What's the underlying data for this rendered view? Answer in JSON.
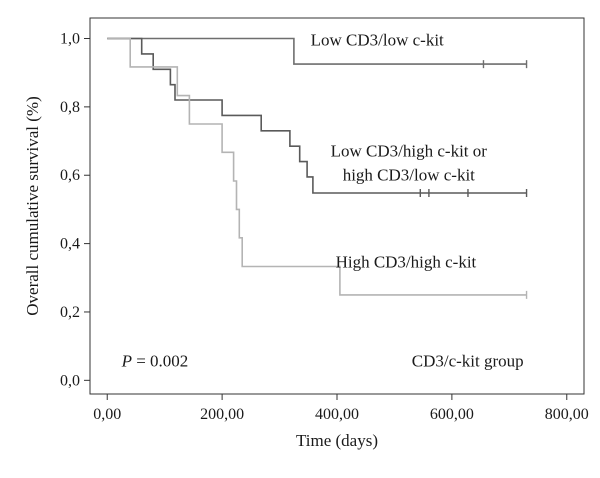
{
  "chart_data": {
    "type": "line",
    "step": true,
    "xlabel": "Time (days)",
    "ylabel": "Overall cumulative survival (%)",
    "xlim": [
      -30,
      830
    ],
    "ylim": [
      -0.04,
      1.06
    ],
    "x_ticks": [
      {
        "value": 0,
        "label": "0,00"
      },
      {
        "value": 200,
        "label": "200,00"
      },
      {
        "value": 400,
        "label": "400,00"
      },
      {
        "value": 600,
        "label": "600,00"
      },
      {
        "value": 800,
        "label": "800,00"
      }
    ],
    "y_ticks": [
      {
        "value": 0,
        "label": "0,0"
      },
      {
        "value": 0.2,
        "label": "0,2"
      },
      {
        "value": 0.4,
        "label": "0,4"
      },
      {
        "value": 0.6,
        "label": "0,6"
      },
      {
        "value": 0.8,
        "label": "0,8"
      },
      {
        "value": 1.0,
        "label": "1,0"
      }
    ],
    "grid": false,
    "series": [
      {
        "name": "Low CD3/low c-kit",
        "color": "#6e6e6e",
        "label_anchor": {
          "x": 470,
          "y": 0.98
        },
        "points": [
          [
            0,
            1.0
          ],
          [
            325,
            1.0
          ],
          [
            325,
            0.925
          ],
          [
            730,
            0.925
          ]
        ],
        "censored": [
          [
            655,
            0.925
          ],
          [
            730,
            0.925
          ]
        ]
      },
      {
        "name": "Low CD3/high c-kit or high CD3/low c-kit",
        "label_lines": [
          "Low CD3/high c-kit or",
          "high CD3/low c-kit"
        ],
        "color": "#5a5a5a",
        "label_anchor": {
          "x": 525,
          "y": 0.655
        },
        "points": [
          [
            0,
            1.0
          ],
          [
            60,
            1.0
          ],
          [
            60,
            0.955
          ],
          [
            80,
            0.955
          ],
          [
            80,
            0.91
          ],
          [
            110,
            0.91
          ],
          [
            110,
            0.865
          ],
          [
            118,
            0.865
          ],
          [
            118,
            0.82
          ],
          [
            200,
            0.82
          ],
          [
            200,
            0.775
          ],
          [
            268,
            0.775
          ],
          [
            268,
            0.73
          ],
          [
            318,
            0.73
          ],
          [
            318,
            0.685
          ],
          [
            335,
            0.685
          ],
          [
            335,
            0.64
          ],
          [
            348,
            0.64
          ],
          [
            348,
            0.595
          ],
          [
            358,
            0.595
          ],
          [
            358,
            0.548
          ],
          [
            730,
            0.548
          ]
        ],
        "censored": [
          [
            545,
            0.548
          ],
          [
            560,
            0.548
          ],
          [
            628,
            0.548
          ],
          [
            730,
            0.548
          ]
        ]
      },
      {
        "name": "High CD3/high c-kit",
        "color": "#b4b4b4",
        "label_anchor": {
          "x": 520,
          "y": 0.33
        },
        "points": [
          [
            0,
            1.0
          ],
          [
            40,
            1.0
          ],
          [
            40,
            0.917
          ],
          [
            122,
            0.917
          ],
          [
            122,
            0.833
          ],
          [
            143,
            0.833
          ],
          [
            143,
            0.75
          ],
          [
            200,
            0.75
          ],
          [
            200,
            0.667
          ],
          [
            220,
            0.667
          ],
          [
            220,
            0.583
          ],
          [
            225,
            0.583
          ],
          [
            225,
            0.5
          ],
          [
            230,
            0.5
          ],
          [
            230,
            0.417
          ],
          [
            235,
            0.417
          ],
          [
            235,
            0.333
          ],
          [
            405,
            0.333
          ],
          [
            405,
            0.25
          ],
          [
            730,
            0.25
          ]
        ],
        "censored": [
          [
            730,
            0.25
          ]
        ]
      }
    ],
    "annotations": {
      "p_value": {
        "prefix": "P",
        "text": " = 0.002",
        "x": 25,
        "y": 0.04
      },
      "group_label": {
        "text": "CD3/c-kit group",
        "x": 725,
        "y": 0.04
      }
    }
  }
}
